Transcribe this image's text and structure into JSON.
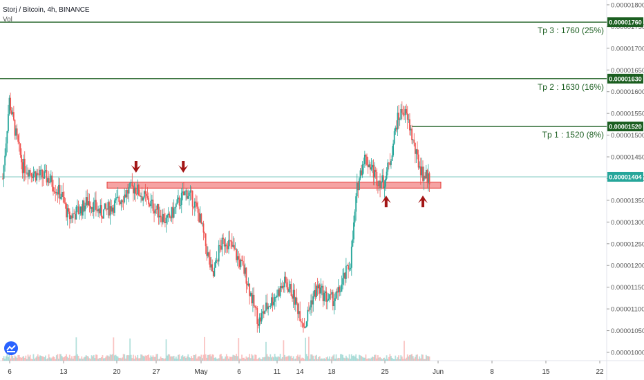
{
  "header": {
    "title": "Storj / Bitcoin, 4h, BINANCE",
    "vol_label": "Vol"
  },
  "logo": {
    "icon": "tradingview-logo-icon"
  },
  "colors": {
    "up": "#26a69a",
    "down": "#ef5350",
    "target_line": "#1b5e20",
    "price_line": "#26a69a",
    "zone_fill": "#f5a3a3",
    "zone_stroke": "#e53935",
    "arrow": "#a31515"
  },
  "chart_data": {
    "type": "candlestick",
    "ylim": [
      9.8e-06,
      1.82e-05
    ],
    "y_ticks": [
      "0.00001000",
      "0.00001050",
      "0.00001100",
      "0.00001150",
      "0.00001200",
      "0.00001250",
      "0.00001300",
      "0.00001350",
      "0.00001400",
      "0.00001450",
      "0.00001500",
      "0.00001550",
      "0.00001600",
      "0.00001650",
      "0.00001700",
      "0.00001750",
      "0.00001800"
    ],
    "x_ticks": [
      "6",
      "13",
      "20",
      "27",
      "May",
      "6",
      "11",
      "14",
      "18",
      "25",
      "Jun",
      "8",
      "15",
      "22"
    ],
    "price_path": [
      [
        0,
        1.4e-05
      ],
      [
        1,
        1.58e-05
      ],
      [
        2,
        1.5e-05
      ],
      [
        3,
        1.43e-05
      ],
      [
        5,
        1.41e-05
      ],
      [
        7,
        1.4e-05
      ],
      [
        9,
        1.36e-05
      ],
      [
        10,
        1.31e-05
      ],
      [
        12,
        1.33e-05
      ],
      [
        13,
        1.35e-05
      ],
      [
        15,
        1.32e-05
      ],
      [
        17,
        1.34e-05
      ],
      [
        19,
        1.37e-05
      ],
      [
        20,
        1.38e-05
      ],
      [
        22,
        1.35e-05
      ],
      [
        24,
        1.32e-05
      ],
      [
        25,
        1.3e-05
      ],
      [
        27,
        1.35e-05
      ],
      [
        28,
        1.37e-05
      ],
      [
        29,
        1.35e-05
      ],
      [
        30,
        1.31e-05
      ],
      [
        31,
        1.24e-05
      ],
      [
        32,
        1.17e-05
      ],
      [
        33,
        1.24e-05
      ],
      [
        34,
        1.26e-05
      ],
      [
        35,
        1.24e-05
      ],
      [
        37,
        1.18e-05
      ],
      [
        38,
        1.12e-05
      ],
      [
        39,
        1.07e-05
      ],
      [
        40,
        1.1e-05
      ],
      [
        41,
        1.12e-05
      ],
      [
        43,
        1.16e-05
      ],
      [
        44,
        1.14e-05
      ],
      [
        45,
        1.1e-05
      ],
      [
        46,
        1.06e-05
      ],
      [
        47,
        1.12e-05
      ],
      [
        48,
        1.15e-05
      ],
      [
        49,
        1.13e-05
      ],
      [
        50,
        1.12e-05
      ],
      [
        51,
        1.13e-05
      ],
      [
        52,
        1.17e-05
      ],
      [
        53,
        1.21e-05
      ],
      [
        54,
        1.38e-05
      ],
      [
        55,
        1.45e-05
      ],
      [
        56,
        1.43e-05
      ],
      [
        57,
        1.4e-05
      ],
      [
        58,
        1.39e-05
      ],
      [
        59,
        1.44e-05
      ],
      [
        60,
        1.53e-05
      ],
      [
        61,
        1.56e-05
      ],
      [
        62,
        1.52e-05
      ],
      [
        63,
        1.45e-05
      ],
      [
        64,
        1.41e-05
      ],
      [
        65,
        1.4e-05
      ]
    ],
    "targets": [
      {
        "value": 1.76e-05,
        "label": "Tp 3 : 1760 (25%)",
        "price_label": "0.00001760"
      },
      {
        "value": 1.63e-05,
        "label": "Tp 2 : 1630 (16%)",
        "price_label": "0.00001630"
      },
      {
        "value": 1.52e-05,
        "label": "Tp 1 : 1520 (8%)",
        "price_label": "0.00001520"
      }
    ],
    "current_price": {
      "value": 1.404e-05,
      "label": "0.00001404"
    },
    "support_zone": {
      "low": 1.378e-05,
      "high": 1.392e-05
    },
    "arrows": [
      {
        "direction": "down",
        "day": 20.3
      },
      {
        "direction": "down",
        "day": 27.5
      },
      {
        "direction": "up",
        "day": 58.4
      },
      {
        "direction": "up",
        "day": 64.0
      }
    ],
    "candle_count": 390,
    "grid": false,
    "legend": "none"
  }
}
